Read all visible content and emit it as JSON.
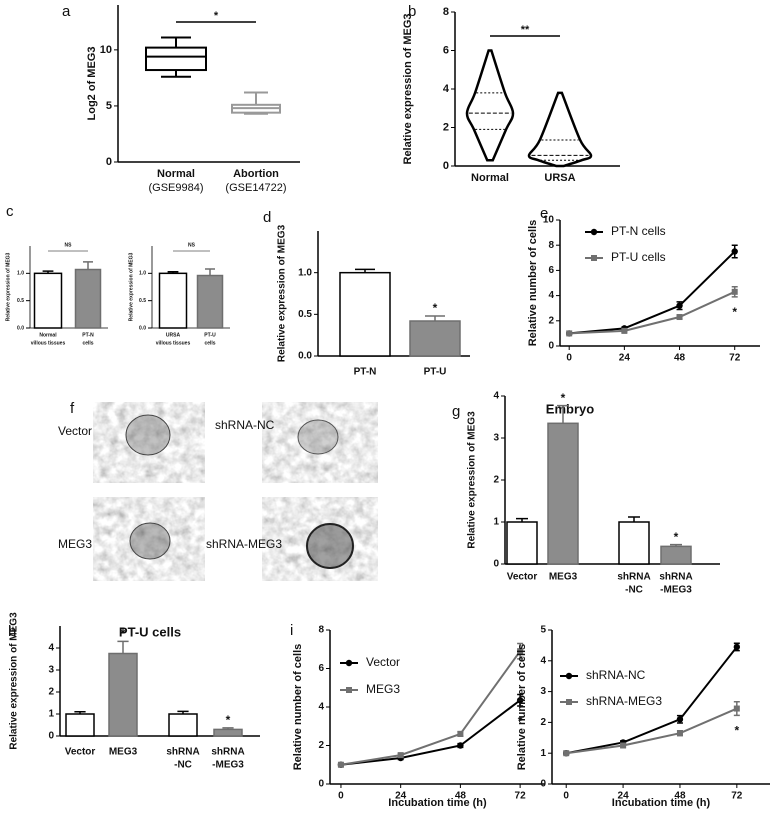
{
  "chart_data": [
    {
      "type": "box",
      "panel": "a",
      "ylabel": "Log2 of MEG3",
      "categories": [
        [
          "Normal",
          "(GSE9984)"
        ],
        [
          "Abortion",
          "(GSE14722)"
        ]
      ],
      "boxes": [
        {
          "min": 7.6,
          "q1": 8.2,
          "median": 9.4,
          "q3": 10.2,
          "max": 11.1
        },
        {
          "min": 4.3,
          "q1": 4.4,
          "median": 4.8,
          "q3": 5.1,
          "max": 6.2
        }
      ],
      "colors": [
        "#000000",
        "#999999"
      ],
      "ylim": [
        0,
        14
      ],
      "yticks": [
        0,
        5,
        10
      ],
      "significance": "*"
    },
    {
      "type": "violin",
      "panel": "b",
      "ylabel": "Relative  expression of MEG3",
      "categories": [
        [
          "Normal"
        ],
        [
          "URSA"
        ]
      ],
      "boxes": [
        {
          "min": 0.3,
          "q1": 1.9,
          "median": 2.75,
          "q3": 3.8,
          "max": 6.0
        },
        {
          "min": 0,
          "q1": 0.3,
          "median": 0.55,
          "q3": 1.35,
          "max": 3.8
        }
      ],
      "colors": [
        "#000000",
        "#000000"
      ],
      "ylim": [
        0,
        8
      ],
      "yticks": [
        0,
        2,
        4,
        6,
        8
      ],
      "significance": "**"
    },
    {
      "type": "bar",
      "panel": "c",
      "ylabel": "Relative  expression of MEG3",
      "categories": [
        [
          "Normal",
          "villous tissues"
        ],
        [
          "PT-N",
          "cells"
        ]
      ],
      "values": [
        1.0,
        1.07
      ],
      "errors": [
        0.04,
        0.14
      ],
      "colors": [
        "#ffffff",
        "#8c8c8c"
      ],
      "ylim": [
        0,
        1.5
      ],
      "yticks": [
        {
          "value": 0,
          "label": "0.0"
        },
        0.5,
        {
          "value": 1,
          "label": "1.0"
        }
      ],
      "significance": "NS"
    },
    {
      "type": "bar",
      "ylabel": "Relative  expression of MEG3",
      "categories": [
        [
          "URSA",
          "villous tissues"
        ],
        [
          "PT-U",
          "cells"
        ]
      ],
      "values": [
        1.0,
        0.96
      ],
      "errors": [
        0.03,
        0.12
      ],
      "colors": [
        "#ffffff",
        "#8c8c8c"
      ],
      "ylim": [
        0,
        1.5
      ],
      "yticks": [
        {
          "value": 0,
          "label": "0.0"
        },
        0.5,
        {
          "value": 1,
          "label": "1.0"
        }
      ],
      "significance": "NS"
    },
    {
      "type": "bar",
      "panel": "d",
      "ylabel": "Relative  expression of MEG3",
      "categories": [
        [
          "PT-N"
        ],
        [
          "PT-U"
        ]
      ],
      "values": [
        1.0,
        0.42
      ],
      "errors": [
        0.04,
        0.06
      ],
      "colors": [
        "#ffffff",
        "#8c8c8c"
      ],
      "ylim": [
        0,
        1.5
      ],
      "yticks": [
        {
          "value": 0,
          "label": "0.0"
        },
        0.5,
        {
          "value": 1,
          "label": "1.0"
        }
      ],
      "bar_significance": [
        null,
        "*"
      ]
    },
    {
      "type": "line",
      "panel": "e",
      "ylabel": "Relative number of cells",
      "x": [
        0,
        24,
        48,
        72
      ],
      "xlim": [
        -4,
        83
      ],
      "xticks": [
        0,
        24,
        48,
        72
      ],
      "ylim": [
        0,
        10
      ],
      "yticks": [
        0,
        2,
        4,
        6,
        8,
        10
      ],
      "series": [
        {
          "name": "PT-N cells",
          "color": "#000000",
          "marker": "circle",
          "values": [
            1.0,
            1.4,
            3.2,
            7.5
          ],
          "errors": [
            0.05,
            0.1,
            0.3,
            0.5
          ]
        },
        {
          "name": "PT-U cells",
          "color": "#707070",
          "marker": "square",
          "values": [
            1.0,
            1.2,
            2.3,
            4.3
          ],
          "errors": [
            0.05,
            0.08,
            0.15,
            0.4
          ],
          "significance": [
            null,
            null,
            null,
            "*"
          ]
        }
      ]
    },
    {
      "type": "bar",
      "panel": "g",
      "title": "Embryo",
      "ylabel": "Relative  expression of MEG3",
      "categories": [
        [
          "Vector"
        ],
        [
          "MEG3"
        ],
        [
          "shRNA",
          "-NC"
        ],
        [
          "shRNA",
          "-MEG3"
        ]
      ],
      "values": [
        1.0,
        3.35,
        1.0,
        0.42
      ],
      "errors": [
        0.08,
        0.42,
        0.12,
        0.04
      ],
      "colors": [
        "#ffffff",
        "#8c8c8c",
        "#ffffff",
        "#8c8c8c"
      ],
      "ylim": [
        0,
        4
      ],
      "yticks": [
        0,
        1,
        2,
        3,
        4
      ],
      "bar_significance": [
        null,
        "*",
        null,
        "*"
      ]
    },
    {
      "type": "bar",
      "panel": "h",
      "title": "PT-U cells",
      "ylabel": "Relative  expression of MEG3",
      "categories": [
        [
          "Vector"
        ],
        [
          "MEG3"
        ],
        [
          "shRNA",
          "-NC"
        ],
        [
          "shRNA",
          "-MEG3"
        ]
      ],
      "values": [
        1.0,
        3.75,
        1.0,
        0.3
      ],
      "errors": [
        0.1,
        0.55,
        0.12,
        0.07
      ],
      "colors": [
        "#ffffff",
        "#8c8c8c",
        "#ffffff",
        "#8c8c8c"
      ],
      "ylim": [
        0,
        5
      ],
      "yticks": [
        0,
        1,
        2,
        3,
        4
      ],
      "bar_significance": [
        null,
        "*",
        null,
        "*"
      ]
    },
    {
      "type": "line",
      "panel": "i",
      "ylabel": "Relative number of cells",
      "xlabel": "Incubation time (h)",
      "x": [
        0,
        24,
        48,
        72
      ],
      "xlim": [
        -4.4,
        82
      ],
      "xticks": [
        0,
        24,
        48,
        72
      ],
      "ylim": [
        0,
        8
      ],
      "yticks": [
        0,
        2,
        4,
        6,
        8
      ],
      "series": [
        {
          "name": "Vector",
          "color": "#000000",
          "marker": "circle",
          "values": [
            1.0,
            1.35,
            2.0,
            4.35
          ],
          "errors": [
            0.05,
            0.08,
            0.1,
            0.3
          ],
          "significance": [
            null,
            null,
            null,
            "*"
          ]
        },
        {
          "name": "MEG3",
          "color": "#707070",
          "marker": "square",
          "values": [
            1.0,
            1.5,
            2.6,
            6.9
          ],
          "errors": [
            0.05,
            0.08,
            0.12,
            0.4
          ]
        }
      ]
    },
    {
      "type": "line",
      "ylabel": "Relative number of cells",
      "xlabel": "Incubation time (h)",
      "x": [
        0,
        24,
        48,
        72
      ],
      "xlim": [
        -6,
        86
      ],
      "xticks": [
        0,
        24,
        48,
        72
      ],
      "ylim": [
        0,
        5
      ],
      "yticks": [
        0,
        1,
        2,
        3,
        4,
        5
      ],
      "series": [
        {
          "name": "shRNA-NC",
          "color": "#000000",
          "marker": "circle",
          "values": [
            1.0,
            1.35,
            2.1,
            4.45
          ],
          "errors": [
            0.03,
            0.05,
            0.12,
            0.12
          ]
        },
        {
          "name": "shRNA-MEG3",
          "color": "#707070",
          "marker": "square",
          "values": [
            1.0,
            1.25,
            1.65,
            2.45
          ],
          "errors": [
            0.03,
            0.05,
            0.08,
            0.22
          ],
          "significance": [
            null,
            null,
            null,
            "*"
          ]
        }
      ]
    }
  ],
  "figure_f": {
    "panel": "f",
    "labels": [
      "Vector",
      "shRNA-NC",
      "MEG3",
      "shRNA-MEG3"
    ]
  }
}
